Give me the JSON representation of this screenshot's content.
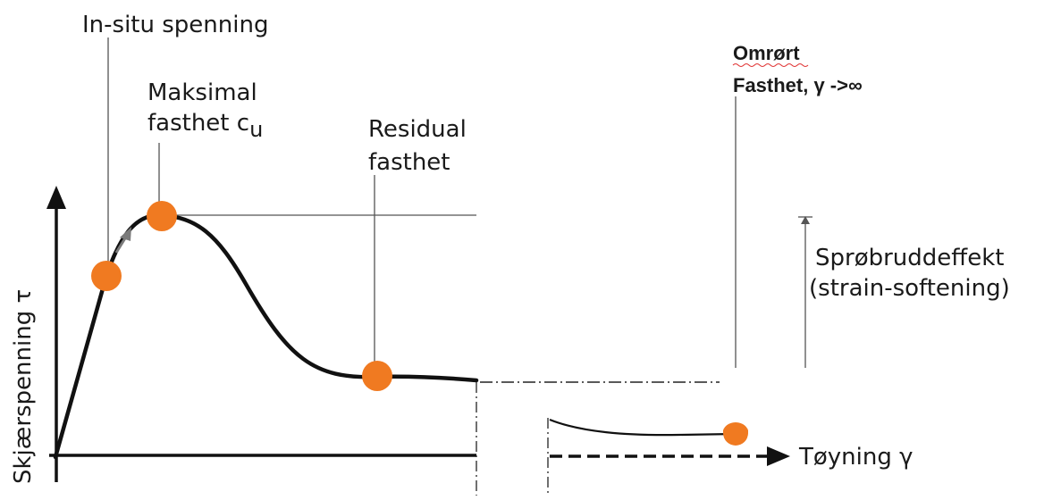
{
  "labels": {
    "in_situ": "In-situ spenning",
    "maks_line1": "Maksimal",
    "maks_line2": "fasthet c",
    "maks_sub": "u",
    "residual_line1": "Residual",
    "residual_line2": "fasthet",
    "omrort_line1": "Omrørt",
    "omrort_line2": "Fasthet, γ ->∞",
    "sprobrudd_line1": "Sprøbruddeffekt",
    "sprobrudd_line2": "(strain-softening)",
    "y_axis": "Skjærspenning τ",
    "x_axis": "Tøyning γ"
  },
  "colors": {
    "curve": "#111111",
    "marker": "#f07a21",
    "guide": "#555555",
    "small_arrow": "#7a7a7a"
  }
}
